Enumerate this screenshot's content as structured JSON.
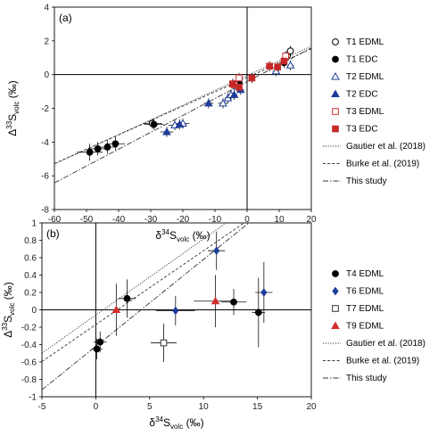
{
  "chart_data": [
    {
      "type": "scatter",
      "panel_label": "(a)",
      "xlabel": "δ34Svolc (‰)",
      "ylabel": "Δ33Svolc (‰)",
      "xlim": [
        -60,
        20
      ],
      "ylim": [
        -8,
        4
      ],
      "xticks": [
        -60,
        -50,
        -40,
        -30,
        -20,
        -10,
        0,
        10,
        20
      ],
      "yticks": [
        -8,
        -6,
        -4,
        -2,
        0,
        2,
        4
      ],
      "grid": false,
      "legend_position": "right",
      "series": [
        {
          "name": "T1 EDML",
          "marker": "circle-open",
          "color": "#000000",
          "points": [
            [
              -29.5,
              -2.9,
              3,
              0.3
            ],
            [
              13.5,
              1.4,
              1,
              0.3
            ],
            [
              12.5,
              1.1,
              1,
              0.3
            ]
          ]
        },
        {
          "name": "T1 EDC",
          "marker": "circle-filled",
          "color": "#000000",
          "points": [
            [
              -49,
              -4.6,
              4,
              0.5
            ],
            [
              -46.5,
              -4.4,
              3,
              0.4
            ],
            [
              -43.5,
              -4.3,
              3,
              0.4
            ],
            [
              -41,
              -4.1,
              3,
              0.4
            ],
            [
              -29,
              -2.95,
              3,
              0.3
            ],
            [
              -2.5,
              -0.5,
              1,
              0.3
            ],
            [
              11.5,
              0.7,
              1,
              0.3
            ]
          ]
        },
        {
          "name": "T2 EDML",
          "marker": "triangle-open",
          "color": "#1f3d99",
          "points": [
            [
              -22.5,
              -3.0,
              2,
              0.3
            ],
            [
              -20,
              -2.9,
              2,
              0.3
            ],
            [
              -7.5,
              -1.7,
              1.5,
              0.3
            ],
            [
              -6,
              -1.4,
              1,
              0.3
            ],
            [
              -5,
              -1.2,
              1,
              0.3
            ],
            [
              -3,
              -0.7,
              1,
              0.3
            ],
            [
              9,
              0.2,
              1,
              0.3
            ],
            [
              13.5,
              0.55,
              1,
              0.3
            ]
          ]
        },
        {
          "name": "T2 EDC",
          "marker": "triangle-filled",
          "color": "#1f3d99",
          "points": [
            [
              -25,
              -3.4,
              2,
              0.3
            ],
            [
              -21,
              -2.95,
              2,
              0.3
            ],
            [
              -12,
              -1.7,
              1.5,
              0.3
            ],
            [
              -4,
              -1.2,
              1,
              0.3
            ],
            [
              -2,
              -0.9,
              1,
              0.3
            ]
          ]
        },
        {
          "name": "T3 EDML",
          "marker": "square-open",
          "color": "#d32f2f",
          "points": [
            [
              -4,
              -0.6,
              1,
              0.3
            ],
            [
              -2.5,
              -0.2,
              1,
              0.3
            ],
            [
              12,
              1.1,
              1,
              0.3
            ]
          ]
        },
        {
          "name": "T3 EDC",
          "marker": "square-filled",
          "color": "#c62828",
          "points": [
            [
              -4.5,
              -0.55,
              1,
              0.3
            ],
            [
              -2.5,
              -0.75,
              1,
              0.3
            ],
            [
              1.5,
              -0.2,
              1,
              0.3
            ],
            [
              7,
              0.5,
              1,
              0.3
            ],
            [
              9.5,
              0.45,
              1,
              0.3
            ],
            [
              11.5,
              0.8,
              1,
              0.3
            ]
          ]
        }
      ],
      "lines": [
        {
          "name": "Gautier et al. (2018)",
          "style": "dotted",
          "slope": 0.0875,
          "intercept": -0.06
        },
        {
          "name": "Burke et al. (2019)",
          "style": "dashed",
          "slope": 0.085,
          "intercept": -0.17
        },
        {
          "name": "This study",
          "style": "dashdot",
          "slope": 0.1,
          "intercept": -0.42
        }
      ]
    },
    {
      "type": "scatter",
      "panel_label": "(b)",
      "xlabel": "δ34Svolc (‰)",
      "ylabel": "Δ33Svolc (‰)",
      "xlim": [
        -5,
        20
      ],
      "ylim": [
        -1,
        1
      ],
      "xticks": [
        -5,
        0,
        5,
        10,
        15,
        20
      ],
      "yticks": [
        -1,
        -0.8,
        -0.6,
        -0.4,
        -0.2,
        0,
        0.2,
        0.4,
        0.6,
        0.8,
        1
      ],
      "grid": false,
      "legend_position": "right",
      "series": [
        {
          "name": "T4 EDML",
          "marker": "circle-filled",
          "color": "#000000",
          "points": [
            [
              0.4,
              -0.37,
              0.6,
              0.12
            ],
            [
              0.1,
              -0.45,
              0.5,
              0.12
            ],
            [
              2.9,
              0.13,
              0.8,
              0.22
            ],
            [
              12.8,
              0.09,
              1.2,
              0.15
            ],
            [
              15.1,
              -0.03,
              0.6,
              0.4
            ]
          ]
        },
        {
          "name": "T6 EDML",
          "marker": "diamond-filled",
          "color": "#1f3d99",
          "points": [
            [
              7.4,
              -0.01,
              1.8,
              0.17
            ],
            [
              11.2,
              0.68,
              0.8,
              0.22
            ],
            [
              15.6,
              0.2,
              0.8,
              0.35
            ]
          ]
        },
        {
          "name": "T7 EDML",
          "marker": "square-open",
          "color": "#333333",
          "points": [
            [
              6.3,
              -0.38,
              1.2,
              0.22
            ]
          ]
        },
        {
          "name": "T9 EDML",
          "marker": "triangle-filled",
          "color": "#d32f2f",
          "points": [
            [
              1.9,
              0.0,
              1.0,
              0.3
            ],
            [
              11.1,
              0.1,
              2.0,
              0.3
            ]
          ]
        }
      ],
      "lines": [
        {
          "name": "Gautier et al. (2018)",
          "style": "dotted",
          "slope": 0.0875,
          "intercept": -0.06
        },
        {
          "name": "Burke et al. (2019)",
          "style": "dashed",
          "slope": 0.085,
          "intercept": -0.17
        },
        {
          "name": "This study",
          "style": "dashdot",
          "slope": 0.1,
          "intercept": -0.42
        }
      ]
    }
  ]
}
